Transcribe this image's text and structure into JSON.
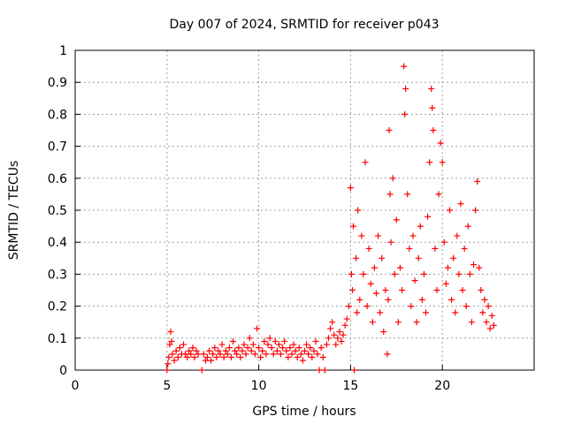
{
  "chart_data": {
    "type": "scatter",
    "title": "Day 007 of 2024, SRMTID for receiver p043",
    "xlabel": "GPS time / hours",
    "ylabel": "SRMTID / TECUs",
    "xlim": [
      0,
      25
    ],
    "ylim": [
      0,
      1
    ],
    "grid": true,
    "xticks": [
      0,
      5,
      10,
      15,
      20
    ],
    "yticks": [
      0,
      0.1,
      0.2,
      0.3,
      0.4,
      0.5,
      0.6,
      0.7,
      0.8,
      0.9,
      1
    ],
    "ytick_labels": [
      "0",
      "0.1",
      "0.2",
      "0.3",
      "0.4",
      "0.5",
      "0.6",
      "0.7",
      "0.8",
      "0.9",
      "1"
    ],
    "marker": "+",
    "color": "#ff0000",
    "points": [
      [
        5.0,
        0.0
      ],
      [
        5.05,
        0.02
      ],
      [
        5.1,
        0.04
      ],
      [
        5.15,
        0.08
      ],
      [
        5.2,
        0.12
      ],
      [
        5.25,
        0.09
      ],
      [
        5.3,
        0.05
      ],
      [
        5.4,
        0.03
      ],
      [
        5.5,
        0.06
      ],
      [
        5.6,
        0.04
      ],
      [
        5.7,
        0.07
      ],
      [
        5.8,
        0.05
      ],
      [
        5.9,
        0.08
      ],
      [
        6.0,
        0.05
      ],
      [
        6.1,
        0.04
      ],
      [
        6.2,
        0.06
      ],
      [
        6.3,
        0.05
      ],
      [
        6.4,
        0.07
      ],
      [
        6.5,
        0.04
      ],
      [
        6.6,
        0.06
      ],
      [
        6.7,
        0.05
      ],
      [
        6.9,
        0.0
      ],
      [
        7.0,
        0.05
      ],
      [
        7.1,
        0.03
      ],
      [
        7.2,
        0.04
      ],
      [
        7.3,
        0.06
      ],
      [
        7.4,
        0.03
      ],
      [
        7.5,
        0.05
      ],
      [
        7.6,
        0.07
      ],
      [
        7.7,
        0.04
      ],
      [
        7.8,
        0.06
      ],
      [
        7.9,
        0.05
      ],
      [
        8.0,
        0.08
      ],
      [
        8.1,
        0.04
      ],
      [
        8.2,
        0.06
      ],
      [
        8.3,
        0.05
      ],
      [
        8.4,
        0.07
      ],
      [
        8.5,
        0.04
      ],
      [
        8.6,
        0.09
      ],
      [
        8.7,
        0.06
      ],
      [
        8.8,
        0.05
      ],
      [
        8.9,
        0.07
      ],
      [
        9.0,
        0.04
      ],
      [
        9.1,
        0.06
      ],
      [
        9.2,
        0.08
      ],
      [
        9.3,
        0.05
      ],
      [
        9.4,
        0.07
      ],
      [
        9.5,
        0.1
      ],
      [
        9.6,
        0.06
      ],
      [
        9.7,
        0.08
      ],
      [
        9.8,
        0.05
      ],
      [
        9.9,
        0.13
      ],
      [
        10.0,
        0.07
      ],
      [
        10.1,
        0.04
      ],
      [
        10.2,
        0.06
      ],
      [
        10.3,
        0.09
      ],
      [
        10.4,
        0.05
      ],
      [
        10.5,
        0.08
      ],
      [
        10.6,
        0.1
      ],
      [
        10.7,
        0.07
      ],
      [
        10.8,
        0.05
      ],
      [
        10.9,
        0.09
      ],
      [
        11.0,
        0.06
      ],
      [
        11.1,
        0.08
      ],
      [
        11.2,
        0.05
      ],
      [
        11.3,
        0.07
      ],
      [
        11.4,
        0.09
      ],
      [
        11.5,
        0.06
      ],
      [
        11.6,
        0.04
      ],
      [
        11.7,
        0.07
      ],
      [
        11.8,
        0.05
      ],
      [
        11.9,
        0.08
      ],
      [
        12.0,
        0.06
      ],
      [
        12.1,
        0.04
      ],
      [
        12.2,
        0.07
      ],
      [
        12.3,
        0.05
      ],
      [
        12.4,
        0.03
      ],
      [
        12.5,
        0.06
      ],
      [
        12.6,
        0.08
      ],
      [
        12.7,
        0.05
      ],
      [
        12.8,
        0.07
      ],
      [
        12.9,
        0.04
      ],
      [
        13.0,
        0.06
      ],
      [
        13.1,
        0.09
      ],
      [
        13.2,
        0.05
      ],
      [
        13.3,
        0.0
      ],
      [
        13.4,
        0.07
      ],
      [
        13.5,
        0.04
      ],
      [
        13.6,
        0.0
      ],
      [
        13.7,
        0.08
      ],
      [
        13.8,
        0.1
      ],
      [
        13.9,
        0.13
      ],
      [
        14.0,
        0.15
      ],
      [
        14.1,
        0.11
      ],
      [
        14.2,
        0.08
      ],
      [
        14.3,
        0.1
      ],
      [
        14.4,
        0.12
      ],
      [
        14.5,
        0.09
      ],
      [
        14.6,
        0.11
      ],
      [
        14.7,
        0.14
      ],
      [
        14.8,
        0.16
      ],
      [
        14.9,
        0.2
      ],
      [
        15.0,
        0.57
      ],
      [
        15.05,
        0.3
      ],
      [
        15.1,
        0.25
      ],
      [
        15.15,
        0.45
      ],
      [
        15.2,
        0.0
      ],
      [
        15.3,
        0.35
      ],
      [
        15.35,
        0.18
      ],
      [
        15.4,
        0.5
      ],
      [
        15.5,
        0.22
      ],
      [
        15.6,
        0.42
      ],
      [
        15.7,
        0.3
      ],
      [
        15.8,
        0.65
      ],
      [
        15.9,
        0.2
      ],
      [
        16.0,
        0.38
      ],
      [
        16.1,
        0.27
      ],
      [
        16.2,
        0.15
      ],
      [
        16.3,
        0.32
      ],
      [
        16.4,
        0.24
      ],
      [
        16.5,
        0.42
      ],
      [
        16.6,
        0.18
      ],
      [
        16.7,
        0.35
      ],
      [
        16.8,
        0.12
      ],
      [
        16.9,
        0.25
      ],
      [
        17.0,
        0.05
      ],
      [
        17.05,
        0.22
      ],
      [
        17.1,
        0.75
      ],
      [
        17.15,
        0.55
      ],
      [
        17.2,
        0.4
      ],
      [
        17.3,
        0.6
      ],
      [
        17.4,
        0.3
      ],
      [
        17.5,
        0.47
      ],
      [
        17.6,
        0.15
      ],
      [
        17.7,
        0.32
      ],
      [
        17.8,
        0.25
      ],
      [
        17.9,
        0.95
      ],
      [
        17.95,
        0.8
      ],
      [
        18.0,
        0.88
      ],
      [
        18.1,
        0.55
      ],
      [
        18.2,
        0.38
      ],
      [
        18.3,
        0.2
      ],
      [
        18.4,
        0.42
      ],
      [
        18.5,
        0.28
      ],
      [
        18.6,
        0.15
      ],
      [
        18.7,
        0.35
      ],
      [
        18.8,
        0.45
      ],
      [
        18.9,
        0.22
      ],
      [
        19.0,
        0.3
      ],
      [
        19.1,
        0.18
      ],
      [
        19.2,
        0.48
      ],
      [
        19.3,
        0.65
      ],
      [
        19.4,
        0.88
      ],
      [
        19.45,
        0.82
      ],
      [
        19.5,
        0.75
      ],
      [
        19.6,
        0.38
      ],
      [
        19.7,
        0.25
      ],
      [
        19.8,
        0.55
      ],
      [
        19.9,
        0.71
      ],
      [
        20.0,
        0.65
      ],
      [
        20.1,
        0.4
      ],
      [
        20.2,
        0.27
      ],
      [
        20.3,
        0.32
      ],
      [
        20.4,
        0.5
      ],
      [
        20.5,
        0.22
      ],
      [
        20.6,
        0.35
      ],
      [
        20.7,
        0.18
      ],
      [
        20.8,
        0.42
      ],
      [
        20.9,
        0.3
      ],
      [
        21.0,
        0.52
      ],
      [
        21.1,
        0.25
      ],
      [
        21.2,
        0.38
      ],
      [
        21.3,
        0.2
      ],
      [
        21.4,
        0.45
      ],
      [
        21.5,
        0.3
      ],
      [
        21.6,
        0.15
      ],
      [
        21.7,
        0.33
      ],
      [
        21.8,
        0.5
      ],
      [
        21.9,
        0.59
      ],
      [
        22.0,
        0.32
      ],
      [
        22.1,
        0.25
      ],
      [
        22.2,
        0.18
      ],
      [
        22.3,
        0.22
      ],
      [
        22.4,
        0.15
      ],
      [
        22.5,
        0.2
      ],
      [
        22.6,
        0.13
      ],
      [
        22.7,
        0.17
      ],
      [
        22.8,
        0.14
      ]
    ]
  }
}
